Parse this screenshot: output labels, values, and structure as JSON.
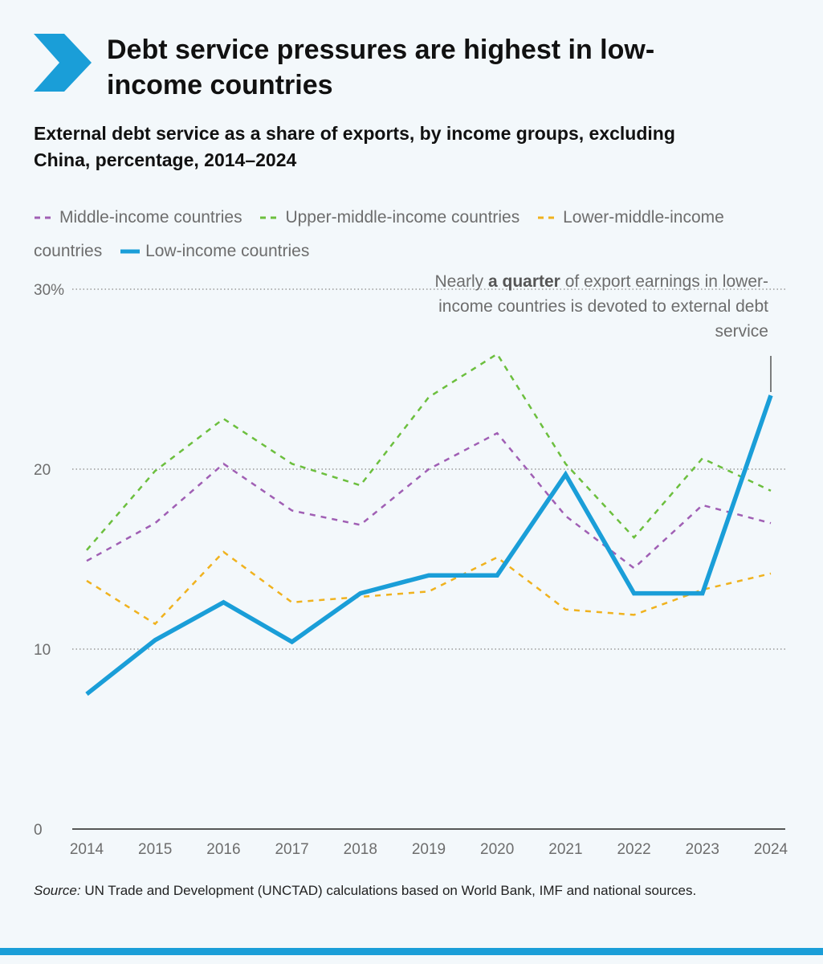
{
  "header": {
    "title": "Debt service pressures are highest in low-\nincome countries",
    "subtitle": "External debt service as a share of exports, by income groups, excluding\nChina, percentage, 2014–2024"
  },
  "annotation": {
    "before": "Nearly ",
    "bold": "a quarter",
    "after": " of export earnings in lower-income countries is devoted to external debt service"
  },
  "source": {
    "label": "Source:",
    "text": " UN Trade and Development (UNCTAD) calculations based on World Bank, IMF and national sources."
  },
  "colors": {
    "accent": "#1a9ed8",
    "middle": "#a05fb4",
    "upper_middle": "#6cbf3e",
    "lower_middle": "#f0b21e",
    "low": "#1a9ed8"
  },
  "chart_data": {
    "type": "line",
    "title": "Debt service pressures are highest in low-income countries",
    "subtitle": "External debt service as a share of exports, by income groups, excluding China, percentage, 2014–2024",
    "x": [
      2014,
      2015,
      2016,
      2017,
      2018,
      2019,
      2020,
      2021,
      2022,
      2023,
      2024
    ],
    "ylim": [
      0,
      30
    ],
    "yticks": [
      0,
      10,
      20,
      30
    ],
    "ytick_labels": [
      "0",
      "10",
      "20",
      "30%"
    ],
    "grid": true,
    "legend_position": "top",
    "series": [
      {
        "name": "Middle-income countries",
        "style": "dashed",
        "color": "#a05fb4",
        "values": [
          14.9,
          17.0,
          20.3,
          17.7,
          16.9,
          20.0,
          22.0,
          17.4,
          14.5,
          18.0,
          17.0
        ]
      },
      {
        "name": "Upper-middle-income countries",
        "style": "dashed",
        "color": "#6cbf3e",
        "values": [
          15.5,
          19.9,
          22.8,
          20.3,
          19.1,
          24.0,
          26.4,
          20.3,
          16.2,
          20.6,
          18.8
        ]
      },
      {
        "name": "Lower-middle-income countries",
        "style": "dashed",
        "color": "#f0b21e",
        "values": [
          13.8,
          11.4,
          15.4,
          12.6,
          12.9,
          13.2,
          15.1,
          12.2,
          11.9,
          13.3,
          14.2
        ]
      },
      {
        "name": "Low-income countries",
        "style": "solid",
        "color": "#1a9ed8",
        "values": [
          7.5,
          10.5,
          12.6,
          10.4,
          13.1,
          14.1,
          14.1,
          19.7,
          13.1,
          13.1,
          24.1
        ]
      }
    ]
  }
}
